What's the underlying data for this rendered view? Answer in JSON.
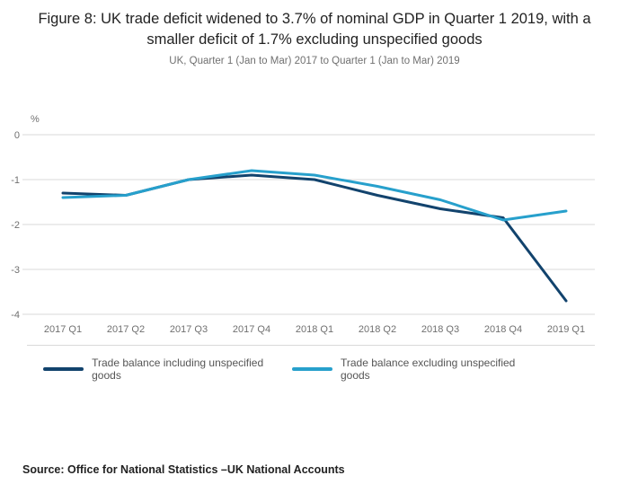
{
  "title": "Figure 8: UK trade deficit widened to 3.7% of nominal GDP in Quarter 1 2019, with a smaller deficit of 1.7% excluding unspecified goods",
  "subtitle": "UK, Quarter 1 (Jan to Mar) 2017 to Quarter 1 (Jan to Mar) 2019",
  "source": "Source: Office for National Statistics –UK National Accounts",
  "chart_data": {
    "type": "line",
    "categories": [
      "2017 Q1",
      "2017 Q2",
      "2017 Q3",
      "2017 Q4",
      "2018 Q1",
      "2018 Q2",
      "2018 Q3",
      "2018 Q4",
      "2019 Q1"
    ],
    "series": [
      {
        "name": "Trade balance including unspecified goods",
        "color": "#12436D",
        "values": [
          -1.3,
          -1.35,
          -1.0,
          -0.9,
          -1.0,
          -1.35,
          -1.65,
          -1.85,
          -3.7
        ]
      },
      {
        "name": "Trade balance excluding unspecified goods",
        "color": "#27A0CC",
        "values": [
          -1.4,
          -1.35,
          -1.0,
          -0.8,
          -0.9,
          -1.15,
          -1.45,
          -1.9,
          -1.7
        ]
      }
    ],
    "title": "Figure 8: UK trade deficit widened to 3.7% of nominal GDP in Quarter 1 2019, with a smaller deficit of 1.7% excluding unspecified goods",
    "xlabel": "",
    "ylabel": "%",
    "ylim": [
      -4,
      0
    ],
    "yticks": [
      0,
      -1,
      -2,
      -3,
      -4
    ],
    "grid": true,
    "legend_position": "bottom"
  }
}
